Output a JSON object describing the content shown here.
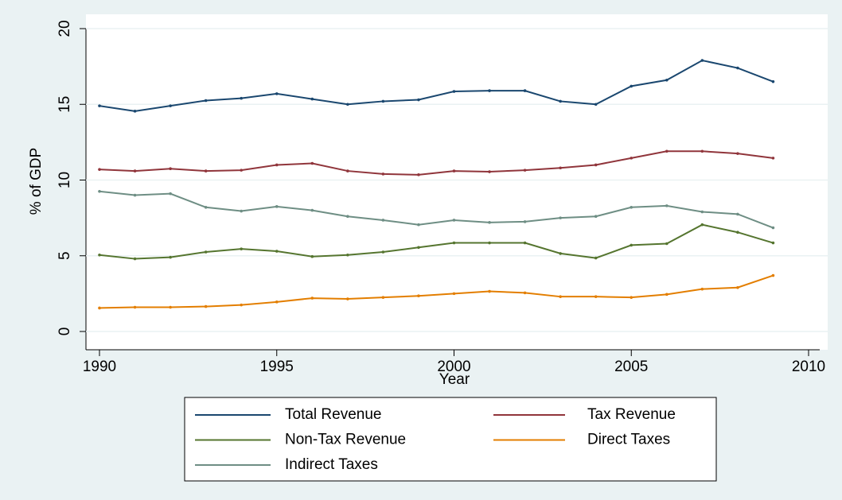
{
  "chart_data": {
    "type": "line",
    "x_label": "Year",
    "y_label": "% of GDP",
    "x": [
      1990,
      1991,
      1992,
      1993,
      1994,
      1995,
      1996,
      1997,
      1998,
      1999,
      2000,
      2001,
      2002,
      2003,
      2004,
      2005,
      2006,
      2007,
      2008,
      2009
    ],
    "series": [
      {
        "name": "Total Revenue",
        "color": "#1a476f",
        "values": [
          14.9,
          14.55,
          14.9,
          15.25,
          15.4,
          15.7,
          15.35,
          15.0,
          15.2,
          15.3,
          15.85,
          15.9,
          15.9,
          15.2,
          15.0,
          16.2,
          16.6,
          17.9,
          17.4,
          16.5
        ]
      },
      {
        "name": "Tax Revenue",
        "color": "#90353b",
        "values": [
          10.7,
          10.6,
          10.75,
          10.6,
          10.65,
          11.0,
          11.1,
          10.6,
          10.4,
          10.35,
          10.6,
          10.55,
          10.65,
          10.8,
          11.0,
          11.45,
          11.9,
          11.9,
          11.75,
          11.45
        ]
      },
      {
        "name": "Non-Tax Revenue",
        "color": "#55752f",
        "values": [
          5.05,
          4.8,
          4.9,
          5.25,
          5.45,
          5.3,
          4.95,
          5.05,
          5.25,
          5.55,
          5.85,
          5.85,
          5.85,
          5.15,
          4.85,
          5.7,
          5.8,
          7.05,
          6.55,
          5.85
        ]
      },
      {
        "name": "Direct Taxes",
        "color": "#e37e00",
        "values": [
          1.55,
          1.6,
          1.6,
          1.65,
          1.75,
          1.95,
          2.2,
          2.15,
          2.25,
          2.35,
          2.5,
          2.65,
          2.55,
          2.3,
          2.3,
          2.25,
          2.45,
          2.8,
          2.9,
          3.7
        ]
      },
      {
        "name": "Indirect Taxes",
        "color": "#6e8e84",
        "values": [
          9.25,
          9.0,
          9.1,
          8.2,
          7.95,
          8.25,
          8.0,
          7.6,
          7.35,
          7.05,
          7.35,
          7.2,
          7.25,
          7.5,
          7.6,
          8.2,
          8.3,
          7.9,
          7.75,
          6.85
        ]
      }
    ],
    "xlim": [
      1990,
      2010
    ],
    "xticks": [
      1990,
      1995,
      2000,
      2005,
      2010
    ],
    "ylim": [
      0,
      20
    ],
    "yticks": [
      0,
      5,
      10,
      15,
      20
    ],
    "grid": true,
    "legend": "bottom"
  }
}
